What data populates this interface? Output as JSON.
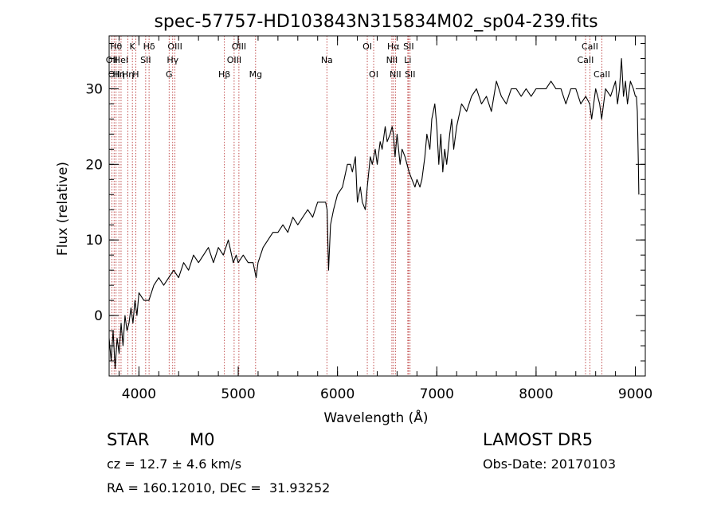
{
  "chart_data": {
    "type": "line",
    "title": "spec-57757-HD103843N315834M02_sp04-239.fits",
    "xlabel": "Wavelength (Å)",
    "ylabel": "Flux (relative)",
    "xlim": [
      3700,
      9100
    ],
    "ylim": [
      -8,
      37
    ],
    "xticks": [
      {
        "v": 4000,
        "label": "4000"
      },
      {
        "v": 5000,
        "label": "5000"
      },
      {
        "v": 6000,
        "label": "6000"
      },
      {
        "v": 7000,
        "label": "7000"
      },
      {
        "v": 8000,
        "label": "8000"
      },
      {
        "v": 9000,
        "label": "9000"
      }
    ],
    "yticks": [
      {
        "v": 0,
        "label": "0"
      },
      {
        "v": 10,
        "label": "10"
      },
      {
        "v": 20,
        "label": "20"
      },
      {
        "v": 30,
        "label": "30"
      }
    ],
    "x_minor_step": 200,
    "y_minor_step": 2,
    "series": [
      {
        "x": [
          3700,
          3720,
          3740,
          3760,
          3780,
          3800,
          3820,
          3840,
          3860,
          3880,
          3900,
          3920,
          3940,
          3960,
          3980,
          4000,
          4050,
          4100,
          4150,
          4200,
          4250,
          4300,
          4350,
          4400,
          4450,
          4500,
          4550,
          4600,
          4650,
          4700,
          4750,
          4800,
          4850,
          4900,
          4950,
          4980,
          5000,
          5050,
          5100,
          5150,
          5180,
          5200,
          5250,
          5300,
          5350,
          5400,
          5450,
          5500,
          5550,
          5600,
          5650,
          5700,
          5750,
          5800,
          5850,
          5880,
          5895,
          5910,
          5930,
          5960,
          6000,
          6050,
          6100,
          6130,
          6150,
          6180,
          6200,
          6230,
          6250,
          6280,
          6300,
          6330,
          6350,
          6380,
          6400,
          6430,
          6450,
          6480,
          6500,
          6530,
          6550,
          6563,
          6580,
          6600,
          6630,
          6650,
          6680,
          6700,
          6720,
          6750,
          6780,
          6800,
          6830,
          6850,
          6880,
          6900,
          6930,
          6950,
          6980,
          7000,
          7020,
          7040,
          7060,
          7080,
          7100,
          7130,
          7150,
          7170,
          7200,
          7250,
          7300,
          7350,
          7400,
          7450,
          7500,
          7550,
          7600,
          7650,
          7700,
          7750,
          7800,
          7850,
          7900,
          7950,
          8000,
          8050,
          8100,
          8150,
          8200,
          8250,
          8300,
          8350,
          8400,
          8450,
          8500,
          8540,
          8560,
          8600,
          8640,
          8660,
          8700,
          8750,
          8800,
          8820,
          8840,
          8860,
          8880,
          8900,
          8920,
          8950,
          8980,
          9000,
          9010,
          9020,
          9030,
          9035
        ],
        "y": [
          -3,
          -6,
          -2,
          -7,
          -3,
          -5,
          -1,
          -4,
          0,
          -2,
          -1,
          1,
          -1,
          2,
          0,
          3,
          2,
          2,
          4,
          5,
          4,
          5,
          6,
          5,
          7,
          6,
          8,
          7,
          8,
          9,
          7,
          9,
          8,
          10,
          7,
          8,
          7,
          8,
          7,
          7,
          5,
          7,
          9,
          10,
          11,
          11,
          12,
          11,
          13,
          12,
          13,
          14,
          13,
          15,
          15,
          15,
          14,
          6,
          12,
          14,
          16,
          17,
          20,
          20,
          19,
          21,
          15,
          17,
          15,
          14,
          17,
          21,
          20,
          22,
          20,
          23,
          22,
          25,
          23,
          24,
          25,
          24,
          21,
          24,
          20,
          22,
          21,
          20,
          19,
          18,
          17,
          18,
          17,
          18,
          21,
          24,
          22,
          26,
          28,
          25,
          20,
          24,
          19,
          22,
          20,
          24,
          26,
          22,
          25,
          28,
          27,
          29,
          30,
          28,
          29,
          27,
          31,
          29,
          28,
          30,
          30,
          29,
          30,
          29,
          30,
          30,
          30,
          31,
          30,
          30,
          28,
          30,
          30,
          28,
          29,
          28,
          26,
          30,
          28,
          26,
          30,
          29,
          31,
          28,
          30,
          34,
          29,
          31,
          28,
          31,
          30,
          29,
          29,
          27,
          20,
          16
        ]
      }
    ],
    "lines": [
      {
        "wl": 3727,
        "label": "OII",
        "row": 2
      },
      {
        "wl": 3750,
        "label": "OII",
        "row": 3
      },
      {
        "wl": 3770,
        "label": "Hθ",
        "row": 1
      },
      {
        "wl": 3798,
        "label": "Hη",
        "row": 3
      },
      {
        "wl": 3820,
        "label": "HeI",
        "row": 2
      },
      {
        "wl": 3889,
        "label": "Hη",
        "row": 3
      },
      {
        "wl": 3934,
        "label": "K",
        "row": 1
      },
      {
        "wl": 3968,
        "label": "H",
        "row": 3
      },
      {
        "wl": 4068,
        "label": "SII",
        "row": 2
      },
      {
        "wl": 4102,
        "label": "Hδ",
        "row": 1
      },
      {
        "wl": 4304,
        "label": "G",
        "row": 3
      },
      {
        "wl": 4340,
        "label": "Hγ",
        "row": 2
      },
      {
        "wl": 4363,
        "label": "OIII",
        "row": 1
      },
      {
        "wl": 4861,
        "label": "Hβ",
        "row": 3
      },
      {
        "wl": 4959,
        "label": "OIII",
        "row": 2
      },
      {
        "wl": 5007,
        "label": "OIII",
        "row": 1
      },
      {
        "wl": 5175,
        "label": "Mg",
        "row": 3
      },
      {
        "wl": 5893,
        "label": "Na",
        "row": 2
      },
      {
        "wl": 6300,
        "label": "OI",
        "row": 1
      },
      {
        "wl": 6364,
        "label": "OI",
        "row": 3
      },
      {
        "wl": 6548,
        "label": "NII",
        "row": 2
      },
      {
        "wl": 6563,
        "label": "Hα",
        "row": 1
      },
      {
        "wl": 6583,
        "label": "NII",
        "row": 3
      },
      {
        "wl": 6708,
        "label": "Li",
        "row": 2
      },
      {
        "wl": 6716,
        "label": "SII",
        "row": 1
      },
      {
        "wl": 6731,
        "label": "SII",
        "row": 3
      },
      {
        "wl": 8498,
        "label": "CaII",
        "row": 2
      },
      {
        "wl": 8542,
        "label": "CaII",
        "row": 1
      },
      {
        "wl": 8662,
        "label": "CaII",
        "row": 3
      }
    ]
  },
  "info": {
    "obj_class": "STAR",
    "subclass": "M0",
    "cz": "cz = 12.7 ± 4.6 km/s",
    "radec": "RA = 160.12010, DEC =  31.93252",
    "survey": "LAMOST DR5",
    "obs_date": "Obs-Date: 20170103"
  }
}
